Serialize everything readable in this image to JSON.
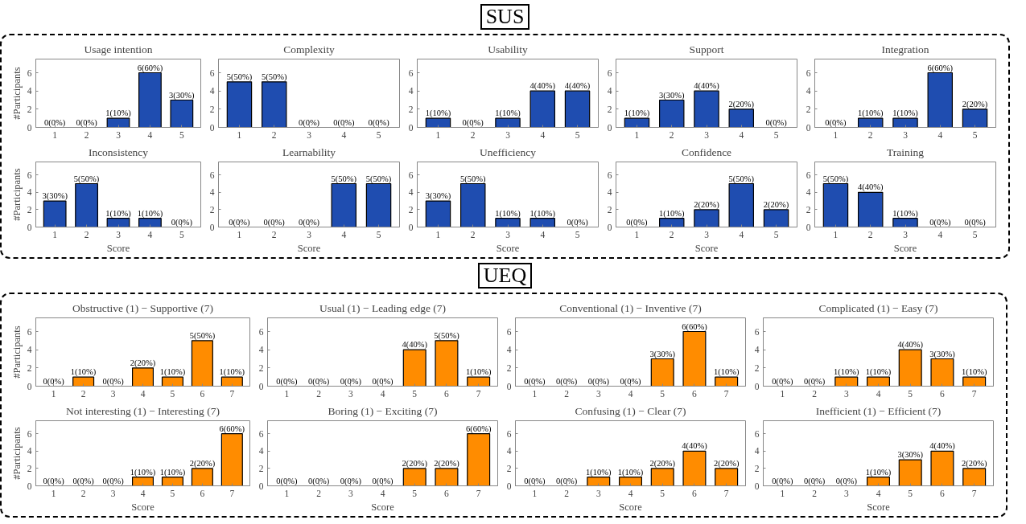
{
  "chart_data": [
    {
      "type": "bar",
      "title": "Usage intention",
      "annotations": [
        "SUS"
      ],
      "categories": [
        "1",
        "2",
        "3",
        "4",
        "5"
      ],
      "values": [
        0,
        0,
        1,
        6,
        3
      ],
      "value_labels": [
        "0(0%)",
        "0(0%)",
        "1(10%)",
        "6(60%)",
        "3(30%)"
      ],
      "color": "#1f4db0",
      "ylim": [
        0,
        7.5
      ],
      "yticks": [
        0,
        2,
        4,
        6
      ],
      "ylabel": "#Participants"
    },
    {
      "type": "bar",
      "title": "Complexity",
      "categories": [
        "1",
        "2",
        "3",
        "4",
        "5"
      ],
      "values": [
        5,
        5,
        0,
        0,
        0
      ],
      "value_labels": [
        "5(50%)",
        "5(50%)",
        "0(0%)",
        "0(0%)",
        "0(0%)"
      ],
      "color": "#1f4db0",
      "ylim": [
        0,
        7.5
      ],
      "yticks": [
        0,
        2,
        4,
        6
      ]
    },
    {
      "type": "bar",
      "title": "Usability",
      "categories": [
        "1",
        "2",
        "3",
        "4",
        "5"
      ],
      "values": [
        1,
        0,
        1,
        4,
        4
      ],
      "value_labels": [
        "1(10%)",
        "0(0%)",
        "1(10%)",
        "4(40%)",
        "4(40%)"
      ],
      "color": "#1f4db0",
      "ylim": [
        0,
        7.5
      ],
      "yticks": [
        0,
        2,
        4,
        6
      ]
    },
    {
      "type": "bar",
      "title": "Support",
      "categories": [
        "1",
        "2",
        "3",
        "4",
        "5"
      ],
      "values": [
        1,
        3,
        4,
        2,
        0
      ],
      "value_labels": [
        "1(10%)",
        "3(30%)",
        "4(40%)",
        "2(20%)",
        "0(0%)"
      ],
      "color": "#1f4db0",
      "ylim": [
        0,
        7.5
      ],
      "yticks": [
        0,
        2,
        4,
        6
      ]
    },
    {
      "type": "bar",
      "title": "Integration",
      "categories": [
        "1",
        "2",
        "3",
        "4",
        "5"
      ],
      "values": [
        0,
        1,
        1,
        6,
        2
      ],
      "value_labels": [
        "0(0%)",
        "1(10%)",
        "1(10%)",
        "6(60%)",
        "2(20%)"
      ],
      "color": "#1f4db0",
      "ylim": [
        0,
        7.5
      ],
      "yticks": [
        0,
        2,
        4,
        6
      ]
    },
    {
      "type": "bar",
      "title": "Inconsistency",
      "categories": [
        "1",
        "2",
        "3",
        "4",
        "5"
      ],
      "values": [
        3,
        5,
        1,
        1,
        0
      ],
      "value_labels": [
        "3(30%)",
        "5(50%)",
        "1(10%)",
        "1(10%)",
        "0(0%)"
      ],
      "color": "#1f4db0",
      "ylim": [
        0,
        7.5
      ],
      "yticks": [
        0,
        2,
        4,
        6
      ],
      "ylabel": "#Participants",
      "xlabel": "Score"
    },
    {
      "type": "bar",
      "title": "Learnability",
      "categories": [
        "1",
        "2",
        "3",
        "4",
        "5"
      ],
      "values": [
        0,
        0,
        0,
        5,
        5
      ],
      "value_labels": [
        "0(0%)",
        "0(0%)",
        "0(0%)",
        "5(50%)",
        "5(50%)"
      ],
      "color": "#1f4db0",
      "ylim": [
        0,
        7.5
      ],
      "yticks": [
        0,
        2,
        4,
        6
      ],
      "xlabel": "Score"
    },
    {
      "type": "bar",
      "title": "Unefficiency",
      "categories": [
        "1",
        "2",
        "3",
        "4",
        "5"
      ],
      "values": [
        3,
        5,
        1,
        1,
        0
      ],
      "value_labels": [
        "3(30%)",
        "5(50%)",
        "1(10%)",
        "1(10%)",
        "0(0%)"
      ],
      "color": "#1f4db0",
      "ylim": [
        0,
        7.5
      ],
      "yticks": [
        0,
        2,
        4,
        6
      ],
      "xlabel": "Score"
    },
    {
      "type": "bar",
      "title": "Confidence",
      "categories": [
        "1",
        "2",
        "3",
        "4",
        "5"
      ],
      "values": [
        0,
        1,
        2,
        5,
        2
      ],
      "value_labels": [
        "0(0%)",
        "1(10%)",
        "2(20%)",
        "5(50%)",
        "2(20%)"
      ],
      "color": "#1f4db0",
      "ylim": [
        0,
        7.5
      ],
      "yticks": [
        0,
        2,
        4,
        6
      ],
      "xlabel": "Score"
    },
    {
      "type": "bar",
      "title": "Training",
      "categories": [
        "1",
        "2",
        "3",
        "4",
        "5"
      ],
      "values": [
        5,
        4,
        1,
        0,
        0
      ],
      "value_labels": [
        "5(50%)",
        "4(40%)",
        "1(10%)",
        "0(0%)",
        "0(0%)"
      ],
      "color": "#1f4db0",
      "ylim": [
        0,
        7.5
      ],
      "yticks": [
        0,
        2,
        4,
        6
      ],
      "xlabel": "Score"
    },
    {
      "type": "bar",
      "title": "Obstructive (1) − Supportive (7)",
      "annotations": [
        "UEQ"
      ],
      "categories": [
        "1",
        "2",
        "3",
        "4",
        "5",
        "6",
        "7"
      ],
      "values": [
        0,
        1,
        0,
        2,
        1,
        5,
        1
      ],
      "value_labels": [
        "0(0%)",
        "1(10%)",
        "0(0%)",
        "2(20%)",
        "1(10%)",
        "5(50%)",
        "1(10%)"
      ],
      "color": "#ff8c00",
      "ylim": [
        0,
        7.5
      ],
      "yticks": [
        0,
        2,
        4,
        6
      ],
      "ylabel": "#Participants"
    },
    {
      "type": "bar",
      "title": "Usual (1) − Leading edge (7)",
      "categories": [
        "1",
        "2",
        "3",
        "4",
        "5",
        "6",
        "7"
      ],
      "values": [
        0,
        0,
        0,
        0,
        4,
        5,
        1
      ],
      "value_labels": [
        "0(0%)",
        "0(0%)",
        "0(0%)",
        "0(0%)",
        "4(40%)",
        "5(50%)",
        "1(10%)"
      ],
      "color": "#ff8c00",
      "ylim": [
        0,
        7.5
      ],
      "yticks": [
        0,
        2,
        4,
        6
      ]
    },
    {
      "type": "bar",
      "title": "Conventional (1) − Inventive (7)",
      "categories": [
        "1",
        "2",
        "3",
        "4",
        "5",
        "6",
        "7"
      ],
      "values": [
        0,
        0,
        0,
        0,
        3,
        6,
        1
      ],
      "value_labels": [
        "0(0%)",
        "0(0%)",
        "0(0%)",
        "0(0%)",
        "3(30%)",
        "6(60%)",
        "1(10%)"
      ],
      "color": "#ff8c00",
      "ylim": [
        0,
        7.5
      ],
      "yticks": [
        0,
        2,
        4,
        6
      ]
    },
    {
      "type": "bar",
      "title": "Complicated (1) − Easy (7)",
      "categories": [
        "1",
        "2",
        "3",
        "4",
        "5",
        "6",
        "7"
      ],
      "values": [
        0,
        0,
        1,
        1,
        4,
        3,
        1
      ],
      "value_labels": [
        "0(0%)",
        "0(0%)",
        "1(10%)",
        "1(10%)",
        "4(40%)",
        "3(30%)",
        "1(10%)"
      ],
      "color": "#ff8c00",
      "ylim": [
        0,
        7.5
      ],
      "yticks": [
        0,
        2,
        4,
        6
      ]
    },
    {
      "type": "bar",
      "title": "Not interesting (1) − Interesting (7)",
      "categories": [
        "1",
        "2",
        "3",
        "4",
        "5",
        "6",
        "7"
      ],
      "values": [
        0,
        0,
        0,
        1,
        1,
        2,
        6
      ],
      "value_labels": [
        "0(0%)",
        "0(0%)",
        "0(0%)",
        "1(10%)",
        "1(10%)",
        "2(20%)",
        "6(60%)"
      ],
      "color": "#ff8c00",
      "ylim": [
        0,
        7.5
      ],
      "yticks": [
        0,
        2,
        4,
        6
      ],
      "ylabel": "#Participants",
      "xlabel": "Score"
    },
    {
      "type": "bar",
      "title": "Boring (1) − Exciting (7)",
      "categories": [
        "1",
        "2",
        "3",
        "4",
        "5",
        "6",
        "7"
      ],
      "values": [
        0,
        0,
        0,
        0,
        2,
        2,
        6
      ],
      "value_labels": [
        "0(0%)",
        "0(0%)",
        "0(0%)",
        "0(0%)",
        "2(20%)",
        "2(20%)",
        "6(60%)"
      ],
      "color": "#ff8c00",
      "ylim": [
        0,
        7.5
      ],
      "yticks": [
        0,
        2,
        4,
        6
      ],
      "xlabel": "Score"
    },
    {
      "type": "bar",
      "title": "Confusing (1) − Clear (7)",
      "categories": [
        "1",
        "2",
        "3",
        "4",
        "5",
        "6",
        "7"
      ],
      "values": [
        0,
        0,
        1,
        1,
        2,
        4,
        2
      ],
      "value_labels": [
        "0(0%)",
        "0(0%)",
        "1(10%)",
        "1(10%)",
        "2(20%)",
        "4(40%)",
        "2(20%)"
      ],
      "color": "#ff8c00",
      "ylim": [
        0,
        7.5
      ],
      "yticks": [
        0,
        2,
        4,
        6
      ],
      "xlabel": "Score"
    },
    {
      "type": "bar",
      "title": "Inefficient (1) − Efficient (7)",
      "categories": [
        "1",
        "2",
        "3",
        "4",
        "5",
        "6",
        "7"
      ],
      "values": [
        0,
        0,
        0,
        1,
        3,
        4,
        2
      ],
      "value_labels": [
        "0(0%)",
        "0(0%)",
        "0(0%)",
        "1(10%)",
        "3(30%)",
        "4(40%)",
        "2(20%)"
      ],
      "color": "#ff8c00",
      "ylim": [
        0,
        7.5
      ],
      "yticks": [
        0,
        2,
        4,
        6
      ],
      "xlabel": "Score"
    }
  ]
}
